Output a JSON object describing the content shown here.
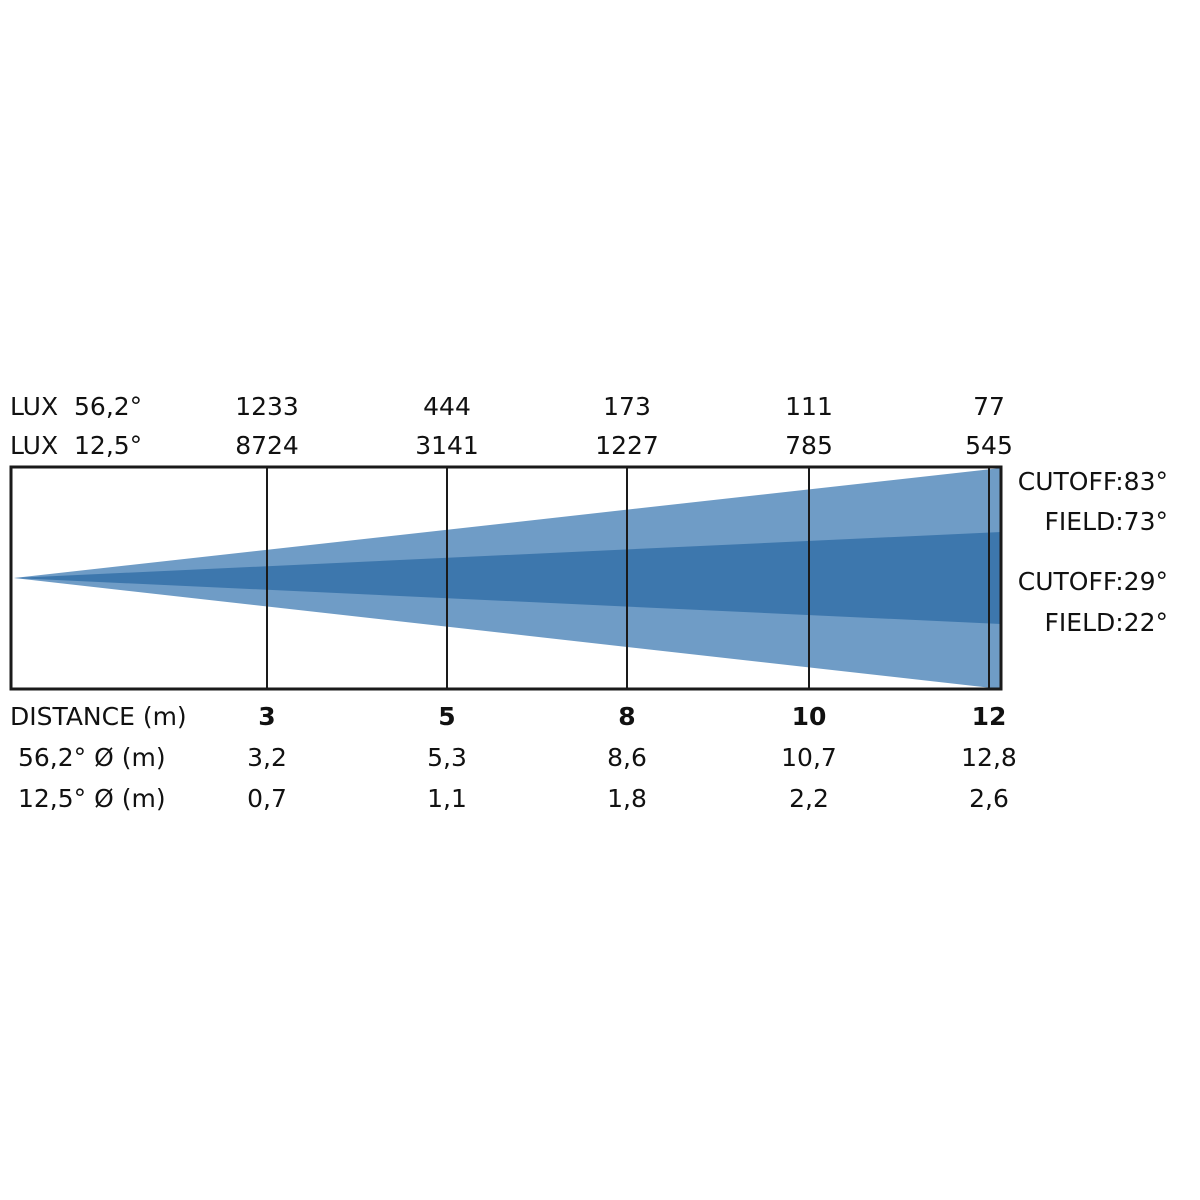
{
  "colors": {
    "outer_beam": "#6f9cc6",
    "inner_beam": "#3d77ad",
    "frame": "#1a1a1a"
  },
  "rows": {
    "lux_wide_label": "LUX  56,2°",
    "lux_narrow_label": "LUX  12,5°",
    "distance_label": "DISTANCE (m)",
    "diam_wide_label": "56,2° Ø (m)",
    "diam_narrow_label": "12,5° Ø (m)"
  },
  "columns": [
    {
      "distance": "3",
      "lux_wide": "1233",
      "lux_narrow": "8724",
      "diam_wide": "3,2",
      "diam_narrow": "0,7"
    },
    {
      "distance": "5",
      "lux_wide": "444",
      "lux_narrow": "3141",
      "diam_wide": "5,3",
      "diam_narrow": "1,1"
    },
    {
      "distance": "8",
      "lux_wide": "173",
      "lux_narrow": "1227",
      "diam_wide": "8,6",
      "diam_narrow": "1,8"
    },
    {
      "distance": "10",
      "lux_wide": "111",
      "lux_narrow": "785",
      "diam_wide": "10,7",
      "diam_narrow": "2,2"
    },
    {
      "distance": "12",
      "lux_wide": "77",
      "lux_narrow": "545",
      "diam_wide": "12,8",
      "diam_narrow": "2,6"
    }
  ],
  "beam_labels": {
    "wide_cutoff": "CUTOFF:83°",
    "wide_field": "FIELD:73°",
    "narrow_cutoff": "CUTOFF:29°",
    "narrow_field": "FIELD:22°"
  }
}
